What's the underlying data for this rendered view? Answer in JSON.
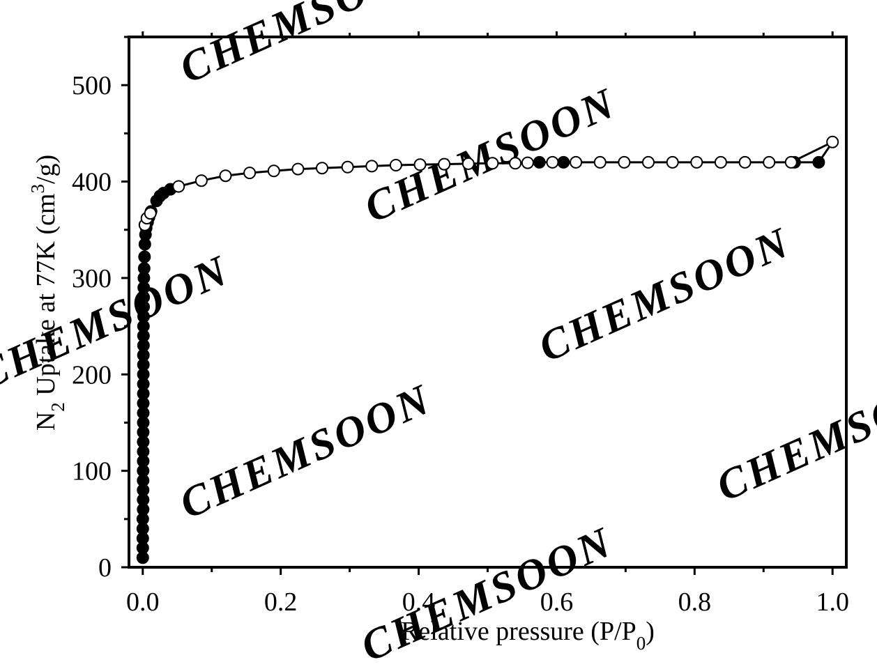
{
  "chart_data": {
    "type": "scatter",
    "title": "",
    "xlabel": {
      "text": "Relative pressure (P/P",
      "sub": "0",
      "close": ")"
    },
    "ylabel": {
      "pre": "N",
      "sub": "2",
      "mid": " Uptake at 77K (cm",
      "sup": "3",
      "post": "/g)"
    },
    "xlim": [
      -0.02,
      1.02
    ],
    "ylim": [
      0,
      550
    ],
    "xticks": [
      0.0,
      0.2,
      0.4,
      0.6,
      0.8,
      1.0
    ],
    "xtick_labels": [
      "0.0",
      "0.2",
      "0.4",
      "0.6",
      "0.8",
      "1.0"
    ],
    "yticks": [
      0,
      100,
      200,
      300,
      400,
      500
    ],
    "ytick_labels": [
      "0",
      "100",
      "200",
      "300",
      "400",
      "500"
    ],
    "grid": false,
    "series": [
      {
        "marker": "filled-circle",
        "color": "#000000",
        "points": [
          [
            0.0,
            10
          ],
          [
            0.0,
            20
          ],
          [
            0.0,
            30
          ],
          [
            0.0,
            40
          ],
          [
            0.0,
            50
          ],
          [
            0.0005,
            60
          ],
          [
            0.0005,
            70
          ],
          [
            0.0005,
            80
          ],
          [
            0.0005,
            90
          ],
          [
            0.0005,
            100
          ],
          [
            0.0006,
            110
          ],
          [
            0.0006,
            120
          ],
          [
            0.0006,
            130
          ],
          [
            0.0006,
            140
          ],
          [
            0.0007,
            150
          ],
          [
            0.0007,
            160
          ],
          [
            0.0007,
            170
          ],
          [
            0.0008,
            180
          ],
          [
            0.0008,
            190
          ],
          [
            0.0008,
            200
          ],
          [
            0.0009,
            210
          ],
          [
            0.0009,
            220
          ],
          [
            0.001,
            230
          ],
          [
            0.001,
            240
          ],
          [
            0.001,
            250
          ],
          [
            0.0012,
            260
          ],
          [
            0.0012,
            270
          ],
          [
            0.0013,
            280
          ],
          [
            0.0014,
            290
          ],
          [
            0.0016,
            300
          ],
          [
            0.002,
            310
          ],
          [
            0.0025,
            322
          ],
          [
            0.003,
            335
          ],
          [
            0.004,
            345
          ],
          [
            0.005,
            352
          ],
          [
            0.007,
            358
          ],
          [
            0.009,
            363
          ],
          [
            0.012,
            369
          ],
          [
            0.02,
            380
          ],
          [
            0.025,
            385
          ],
          [
            0.03,
            388
          ],
          [
            0.04,
            392
          ],
          [
            0.575,
            420
          ],
          [
            0.61,
            420
          ],
          [
            0.945,
            420
          ],
          [
            0.98,
            420
          ]
        ]
      },
      {
        "marker": "open-circle",
        "color": "#000000",
        "points": [
          [
            0.003,
            355
          ],
          [
            0.006,
            362
          ],
          [
            0.011,
            367
          ],
          [
            0.052,
            395
          ],
          [
            0.085,
            401
          ],
          [
            0.12,
            406
          ],
          [
            0.155,
            409
          ],
          [
            0.19,
            411
          ],
          [
            0.225,
            413
          ],
          [
            0.26,
            414
          ],
          [
            0.297,
            415
          ],
          [
            0.332,
            416
          ],
          [
            0.367,
            417
          ],
          [
            0.402,
            417.5
          ],
          [
            0.437,
            418
          ],
          [
            0.472,
            418.5
          ],
          [
            0.507,
            419
          ],
          [
            0.54,
            419
          ],
          [
            0.558,
            419.5
          ],
          [
            0.594,
            420
          ],
          [
            0.628,
            420
          ],
          [
            0.663,
            420
          ],
          [
            0.698,
            420
          ],
          [
            0.733,
            420
          ],
          [
            0.768,
            420
          ],
          [
            0.803,
            420
          ],
          [
            0.838,
            420
          ],
          [
            0.873,
            420
          ],
          [
            0.908,
            420
          ],
          [
            0.94,
            420
          ],
          [
            1.0,
            441
          ]
        ]
      }
    ],
    "line_path": [
      [
        0.0,
        10
      ],
      [
        0.0005,
        100
      ],
      [
        0.001,
        250
      ],
      [
        0.0016,
        300
      ],
      [
        0.003,
        335
      ],
      [
        0.005,
        352
      ],
      [
        0.009,
        363
      ],
      [
        0.012,
        369
      ],
      [
        0.02,
        380
      ],
      [
        0.03,
        388
      ],
      [
        0.04,
        392
      ],
      [
        0.052,
        395
      ],
      [
        0.085,
        401
      ],
      [
        0.12,
        406
      ],
      [
        0.155,
        409
      ],
      [
        0.19,
        411
      ],
      [
        0.225,
        413
      ],
      [
        0.26,
        414
      ],
      [
        0.297,
        415
      ],
      [
        0.332,
        416
      ],
      [
        0.367,
        417
      ],
      [
        0.402,
        417.5
      ],
      [
        0.437,
        418
      ],
      [
        0.472,
        418.5
      ],
      [
        0.507,
        419
      ],
      [
        0.54,
        419
      ],
      [
        0.575,
        420
      ],
      [
        0.61,
        420
      ],
      [
        0.698,
        420
      ],
      [
        0.803,
        420
      ],
      [
        0.908,
        420
      ],
      [
        0.945,
        420
      ],
      [
        0.98,
        420
      ],
      [
        1.0,
        441
      ],
      [
        0.94,
        420
      ]
    ]
  },
  "watermark": "CHEMSOON"
}
